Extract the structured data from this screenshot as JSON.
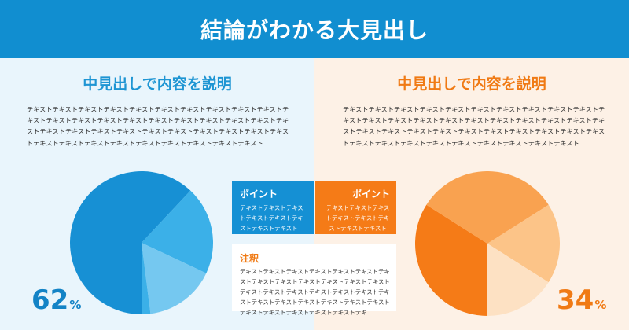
{
  "header": {
    "title": "結論がわかる大見出し"
  },
  "left": {
    "subtitle": "中見出しで内容を説明",
    "text": "テキストテキストテキストテキストテキストテキストテキストテキストテキストテキストテキストテキストテキストテキストテキストテキストテキストテキストテキストテキストテキストテキストテキストテキストテキストテキストテキストテキストテキストテキストテキストテキストテキストテキストテキストテキストテキストテキストテキストテキスト",
    "percent": "62",
    "unit": "%"
  },
  "right": {
    "subtitle": "中見出しで内容を説明",
    "text": "テキストテキストテキストテキストテキストテキストテキストテキストテキストテキストテキストテキストテキストテキストテキストテキストテキストテキストテキストテキストテキストテキストテキストテキストテキストテキストテキストテキストテキストテキストテキストテキストテキストテキストテキストテキストテキストテキストテキストテキスト",
    "percent": "34",
    "unit": "%"
  },
  "point_left": {
    "title": "ポイント",
    "text": "テキストテキストテキストテキストテキストテキストテキストテキスト"
  },
  "point_right": {
    "title": "ポイント",
    "text": "テキストテキストテキストテキストテキストテキストテキストテキスト"
  },
  "note": {
    "title": "注釈",
    "text": "テキストテキストテキストテキストテキストテキストテキストテキストテキストテキストテキストテキストテキストテキストテキストテキストテキストテキストテキストテキストテキストテキストテキストテキストテキストテキストテキストテキストテキストテキストテキストテキ"
  },
  "colors": {
    "blue": "#118ed0",
    "orange": "#f57b17"
  },
  "chart_data": [
    {
      "type": "pie",
      "start_angle_deg": 90,
      "slices": [
        {
          "value": 62,
          "color": "#1790d4"
        },
        {
          "value": 20,
          "color": "#3bb0e8"
        },
        {
          "value": 16,
          "color": "#75c8f0"
        },
        {
          "value": 2,
          "color": "#3bb0e8"
        }
      ]
    },
    {
      "type": "pie",
      "start_angle_deg": 90,
      "slices": [
        {
          "value": 34,
          "color": "#f57b17"
        },
        {
          "value": 32,
          "color": "#f9a250"
        },
        {
          "value": 18,
          "color": "#fcc488"
        },
        {
          "value": 16,
          "color": "#fde1c3"
        }
      ]
    }
  ]
}
